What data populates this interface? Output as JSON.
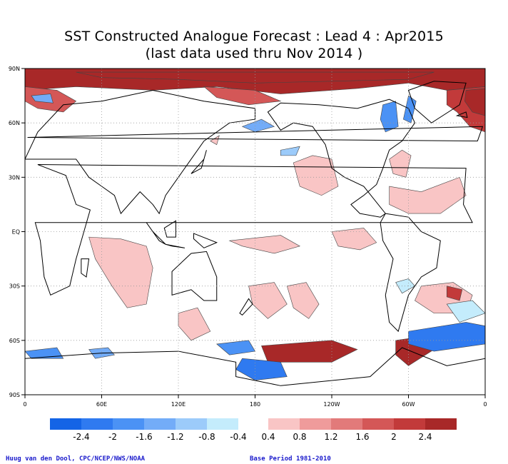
{
  "chart_data": {
    "type": "heatmap",
    "title": "SST Constructed Analogue Forecast : Lead 4 : Apr2015",
    "subtitle": "(last data used thru Nov 2014 )",
    "x_ticks": [
      "0",
      "60E",
      "120E",
      "180",
      "120W",
      "60W",
      "0"
    ],
    "y_ticks": [
      "90N",
      "60N",
      "30N",
      "EQ",
      "30S",
      "60S",
      "90S"
    ],
    "colorbar": {
      "tick_labels": [
        "-2.4",
        "-2",
        "-1.6",
        "-1.2",
        "-0.8",
        "-0.4",
        "0.4",
        "0.8",
        "1.2",
        "1.6",
        "2",
        "2.4"
      ],
      "neg_colors": [
        "#1464e6",
        "#2f7af0",
        "#4b92f5",
        "#73acf8",
        "#9ccbfa",
        "#c4ecfc"
      ],
      "pos_colors": [
        "#f9c5c5",
        "#ef9b9b",
        "#e27a7a",
        "#d45757",
        "#c23a3a",
        "#a82828"
      ]
    },
    "xlim": [
      0,
      360
    ],
    "ylim": [
      -90,
      90
    ],
    "grid": true
  },
  "credits": {
    "left": "Huug van den Dool, CPC/NCEP/NWS/NOAA",
    "right": "Base Period 1981-2010"
  },
  "anomaly_regions": [
    {
      "name": "arctic-warm-band",
      "points": [
        [
          0,
          90
        ],
        [
          360,
          90
        ],
        [
          360,
          80
        ],
        [
          330,
          78
        ],
        [
          300,
          82
        ],
        [
          260,
          79
        ],
        [
          200,
          76
        ],
        [
          150,
          80
        ],
        [
          100,
          78
        ],
        [
          40,
          80
        ],
        [
          0,
          78
        ]
      ],
      "level": 6
    },
    {
      "name": "arctic-warm-inner",
      "points": [
        [
          40,
          88
        ],
        [
          320,
          88
        ],
        [
          300,
          84
        ],
        [
          240,
          83
        ],
        [
          180,
          82
        ],
        [
          120,
          84
        ],
        [
          60,
          85
        ]
      ],
      "level": 6
    },
    {
      "name": "barents-warm",
      "points": [
        [
          0,
          80
        ],
        [
          25,
          78
        ],
        [
          40,
          72
        ],
        [
          30,
          66
        ],
        [
          10,
          68
        ],
        [
          0,
          72
        ]
      ],
      "level": 4
    },
    {
      "name": "north-atlantic-warm-east",
      "points": [
        [
          330,
          78
        ],
        [
          360,
          80
        ],
        [
          360,
          55
        ],
        [
          348,
          58
        ],
        [
          338,
          66
        ],
        [
          330,
          70
        ]
      ],
      "level": 5
    },
    {
      "name": "north-atlantic-warm-east-core",
      "points": [
        [
          345,
          78
        ],
        [
          360,
          79
        ],
        [
          360,
          64
        ],
        [
          350,
          66
        ],
        [
          344,
          72
        ]
      ],
      "level": 6
    },
    {
      "name": "siberia-coast-warm",
      "points": [
        [
          140,
          80
        ],
        [
          180,
          78
        ],
        [
          200,
          72
        ],
        [
          175,
          70
        ],
        [
          150,
          74
        ]
      ],
      "level": 4
    },
    {
      "name": "okhotsk-warm",
      "points": [
        [
          145,
          50
        ],
        [
          152,
          53
        ],
        [
          150,
          48
        ]
      ],
      "level": 1
    },
    {
      "name": "north-pacific-warm",
      "points": [
        [
          210,
          38
        ],
        [
          225,
          42
        ],
        [
          240,
          40
        ],
        [
          245,
          25
        ],
        [
          232,
          20
        ],
        [
          215,
          25
        ]
      ],
      "level": 1
    },
    {
      "name": "west-atlantic-warm",
      "points": [
        [
          285,
          40
        ],
        [
          295,
          45
        ],
        [
          302,
          42
        ],
        [
          298,
          30
        ],
        [
          288,
          32
        ]
      ],
      "level": 1
    },
    {
      "name": "subtropical-atlantic-warm",
      "points": [
        [
          285,
          25
        ],
        [
          310,
          22
        ],
        [
          340,
          30
        ],
        [
          345,
          20
        ],
        [
          325,
          10
        ],
        [
          300,
          10
        ],
        [
          285,
          15
        ]
      ],
      "level": 1
    },
    {
      "name": "south-pacific-convergence-warm",
      "points": [
        [
          160,
          -5
        ],
        [
          200,
          -2
        ],
        [
          215,
          -8
        ],
        [
          195,
          -12
        ],
        [
          170,
          -8
        ]
      ],
      "level": 1
    },
    {
      "name": "equatorial-pacific-warm",
      "points": [
        [
          240,
          0
        ],
        [
          265,
          2
        ],
        [
          275,
          -6
        ],
        [
          262,
          -10
        ],
        [
          245,
          -8
        ]
      ],
      "level": 1
    },
    {
      "name": "indian-ocean-warm",
      "points": [
        [
          50,
          -3
        ],
        [
          75,
          -4
        ],
        [
          95,
          -8
        ],
        [
          100,
          -20
        ],
        [
          95,
          -40
        ],
        [
          80,
          -42
        ],
        [
          68,
          -30
        ],
        [
          55,
          -15
        ]
      ],
      "level": 1
    },
    {
      "name": "pacific-south-warm-1",
      "points": [
        [
          175,
          -30
        ],
        [
          195,
          -28
        ],
        [
          205,
          -40
        ],
        [
          190,
          -48
        ],
        [
          178,
          -40
        ]
      ],
      "level": 1
    },
    {
      "name": "pacific-south-warm-2",
      "points": [
        [
          205,
          -30
        ],
        [
          220,
          -28
        ],
        [
          230,
          -40
        ],
        [
          222,
          -48
        ],
        [
          210,
          -42
        ]
      ],
      "level": 1
    },
    {
      "name": "south-atlantic-warm",
      "points": [
        [
          310,
          -30
        ],
        [
          335,
          -28
        ],
        [
          350,
          -35
        ],
        [
          345,
          -45
        ],
        [
          320,
          -45
        ],
        [
          305,
          -38
        ]
      ],
      "level": 1
    },
    {
      "name": "south-atlantic-core",
      "points": [
        [
          330,
          -30
        ],
        [
          342,
          -32
        ],
        [
          340,
          -38
        ],
        [
          330,
          -36
        ]
      ],
      "level": 5
    },
    {
      "name": "southern-warm-band-pac",
      "points": [
        [
          185,
          -63
        ],
        [
          240,
          -60
        ],
        [
          260,
          -65
        ],
        [
          240,
          -72
        ],
        [
          190,
          -72
        ]
      ],
      "level": 6
    },
    {
      "name": "antarctic-warm-atl",
      "points": [
        [
          290,
          -60
        ],
        [
          310,
          -58
        ],
        [
          320,
          -65
        ],
        [
          300,
          -74
        ],
        [
          290,
          -68
        ]
      ],
      "level": 6
    },
    {
      "name": "tasman-warm",
      "points": [
        [
          120,
          -45
        ],
        [
          135,
          -42
        ],
        [
          145,
          -55
        ],
        [
          130,
          -60
        ],
        [
          120,
          -52
        ]
      ],
      "level": 1
    },
    {
      "name": "arctic-cold-1",
      "points": [
        [
          5,
          75
        ],
        [
          20,
          76
        ],
        [
          22,
          71
        ],
        [
          8,
          72
        ]
      ],
      "level": -3
    },
    {
      "name": "okhotsk-cold",
      "points": [
        [
          170,
          58
        ],
        [
          185,
          62
        ],
        [
          195,
          58
        ],
        [
          180,
          55
        ]
      ],
      "level": -3
    },
    {
      "name": "alaska-cold",
      "points": [
        [
          200,
          45
        ],
        [
          215,
          47
        ],
        [
          212,
          42
        ],
        [
          200,
          42
        ]
      ],
      "level": -2
    },
    {
      "name": "hudson-cold",
      "points": [
        [
          280,
          70
        ],
        [
          290,
          72
        ],
        [
          292,
          58
        ],
        [
          282,
          55
        ],
        [
          278,
          62
        ]
      ],
      "level": -4
    },
    {
      "name": "labrador-cold",
      "points": [
        [
          300,
          75
        ],
        [
          306,
          72
        ],
        [
          302,
          60
        ],
        [
          296,
          62
        ]
      ],
      "level": -4
    },
    {
      "name": "south-pacific-cold",
      "points": [
        [
          290,
          -28
        ],
        [
          300,
          -26
        ],
        [
          305,
          -30
        ],
        [
          295,
          -34
        ]
      ],
      "level": -1
    },
    {
      "name": "south-atlantic-cold-1",
      "points": [
        [
          300,
          -55
        ],
        [
          345,
          -50
        ],
        [
          360,
          -52
        ],
        [
          360,
          -62
        ],
        [
          320,
          -66
        ],
        [
          300,
          -62
        ]
      ],
      "level": -5
    },
    {
      "name": "south-atlantic-cold-shallow",
      "points": [
        [
          330,
          -40
        ],
        [
          350,
          -38
        ],
        [
          360,
          -45
        ],
        [
          340,
          -50
        ]
      ],
      "level": -1
    },
    {
      "name": "ross-sea-cold",
      "points": [
        [
          170,
          -70
        ],
        [
          200,
          -72
        ],
        [
          205,
          -80
        ],
        [
          180,
          -82
        ],
        [
          165,
          -76
        ]
      ],
      "level": -5
    },
    {
      "name": "southern-indian-cold",
      "points": [
        [
          50,
          -65
        ],
        [
          65,
          -64
        ],
        [
          70,
          -68
        ],
        [
          55,
          -70
        ]
      ],
      "level": -3
    },
    {
      "name": "southern-atl-cold-west",
      "points": [
        [
          0,
          -66
        ],
        [
          25,
          -64
        ],
        [
          30,
          -70
        ],
        [
          5,
          -70
        ]
      ],
      "level": -4
    },
    {
      "name": "south-pacific-cold-2",
      "points": [
        [
          150,
          -62
        ],
        [
          175,
          -60
        ],
        [
          180,
          -66
        ],
        [
          160,
          -68
        ]
      ],
      "level": -4
    }
  ],
  "land": [
    {
      "name": "north-america",
      "points": [
        [
          190,
          66
        ],
        [
          200,
          71
        ],
        [
          230,
          70
        ],
        [
          260,
          68
        ],
        [
          285,
          73
        ],
        [
          300,
          68
        ],
        [
          305,
          60
        ],
        [
          295,
          50
        ],
        [
          285,
          45
        ],
        [
          280,
          35
        ],
        [
          275,
          26
        ],
        [
          265,
          20
        ],
        [
          255,
          15
        ],
        [
          262,
          10
        ],
        [
          278,
          8
        ],
        [
          282,
          10
        ],
        [
          265,
          25
        ],
        [
          250,
          30
        ],
        [
          240,
          35
        ],
        [
          235,
          48
        ],
        [
          225,
          58
        ],
        [
          210,
          60
        ],
        [
          200,
          56
        ]
      ]
    },
    {
      "name": "south-america",
      "points": [
        [
          282,
          10
        ],
        [
          300,
          8
        ],
        [
          310,
          0
        ],
        [
          325,
          -5
        ],
        [
          322,
          -20
        ],
        [
          310,
          -25
        ],
        [
          300,
          -35
        ],
        [
          292,
          -55
        ],
        [
          285,
          -50
        ],
        [
          282,
          -35
        ],
        [
          288,
          -15
        ],
        [
          280,
          -5
        ],
        [
          278,
          5
        ]
      ]
    },
    {
      "name": "africa",
      "points": [
        [
          345,
          35
        ],
        [
          10,
          37
        ],
        [
          32,
          31
        ],
        [
          40,
          15
        ],
        [
          51,
          12
        ],
        [
          40,
          -15
        ],
        [
          35,
          -30
        ],
        [
          20,
          -35
        ],
        [
          15,
          -25
        ],
        [
          12,
          -5
        ],
        [
          8,
          5
        ],
        [
          350,
          5
        ],
        [
          343,
          15
        ]
      ]
    },
    {
      "name": "eurasia",
      "points": [
        [
          0,
          40
        ],
        [
          10,
          55
        ],
        [
          30,
          70
        ],
        [
          60,
          72
        ],
        [
          100,
          78
        ],
        [
          140,
          72
        ],
        [
          180,
          68
        ],
        [
          180,
          62
        ],
        [
          160,
          60
        ],
        [
          140,
          50
        ],
        [
          130,
          40
        ],
        [
          120,
          30
        ],
        [
          110,
          20
        ],
        [
          105,
          10
        ],
        [
          100,
          15
        ],
        [
          90,
          22
        ],
        [
          75,
          10
        ],
        [
          70,
          20
        ],
        [
          60,
          25
        ],
        [
          50,
          30
        ],
        [
          40,
          40
        ],
        [
          30,
          40
        ],
        [
          15,
          40
        ]
      ]
    },
    {
      "name": "australia",
      "points": [
        [
          115,
          -22
        ],
        [
          130,
          -12
        ],
        [
          142,
          -11
        ],
        [
          150,
          -25
        ],
        [
          150,
          -38
        ],
        [
          140,
          -38
        ],
        [
          130,
          -32
        ],
        [
          115,
          -35
        ]
      ]
    },
    {
      "name": "greenland",
      "points": [
        [
          300,
          78
        ],
        [
          320,
          83
        ],
        [
          345,
          82
        ],
        [
          340,
          70
        ],
        [
          318,
          60
        ],
        [
          305,
          68
        ]
      ]
    },
    {
      "name": "antarctica",
      "points": [
        [
          0,
          -70
        ],
        [
          60,
          -67
        ],
        [
          120,
          -66
        ],
        [
          165,
          -72
        ],
        [
          165,
          -80
        ],
        [
          200,
          -85
        ],
        [
          270,
          -80
        ],
        [
          295,
          -64
        ],
        [
          330,
          -74
        ],
        [
          360,
          -70
        ],
        [
          360,
          -90
        ],
        [
          0,
          -90
        ]
      ]
    },
    {
      "name": "madagascar",
      "points": [
        [
          44,
          -15
        ],
        [
          50,
          -15
        ],
        [
          48,
          -25
        ],
        [
          44,
          -23
        ]
      ]
    },
    {
      "name": "new-zealand",
      "points": [
        [
          168,
          -45
        ],
        [
          175,
          -37
        ],
        [
          178,
          -40
        ],
        [
          170,
          -46
        ]
      ]
    },
    {
      "name": "indonesia-1",
      "points": [
        [
          95,
          5
        ],
        [
          105,
          -5
        ],
        [
          110,
          -7
        ],
        [
          100,
          0
        ]
      ]
    },
    {
      "name": "indonesia-2",
      "points": [
        [
          110,
          -7
        ],
        [
          125,
          -9
        ],
        [
          115,
          -8
        ]
      ]
    },
    {
      "name": "borneo",
      "points": [
        [
          109,
          2
        ],
        [
          118,
          6
        ],
        [
          118,
          -3
        ],
        [
          111,
          -3
        ]
      ]
    },
    {
      "name": "new-guinea",
      "points": [
        [
          132,
          -1
        ],
        [
          150,
          -6
        ],
        [
          140,
          -9
        ],
        [
          132,
          -4
        ]
      ]
    },
    {
      "name": "japan",
      "points": [
        [
          130,
          32
        ],
        [
          140,
          40
        ],
        [
          142,
          45
        ],
        [
          138,
          35
        ]
      ]
    },
    {
      "name": "uk",
      "points": [
        [
          354,
          50
        ],
        [
          358,
          58
        ],
        [
          2,
          52
        ]
      ]
    },
    {
      "name": "iceland",
      "points": [
        [
          338,
          64
        ],
        [
          345,
          66
        ],
        [
          346,
          63
        ]
      ]
    }
  ]
}
